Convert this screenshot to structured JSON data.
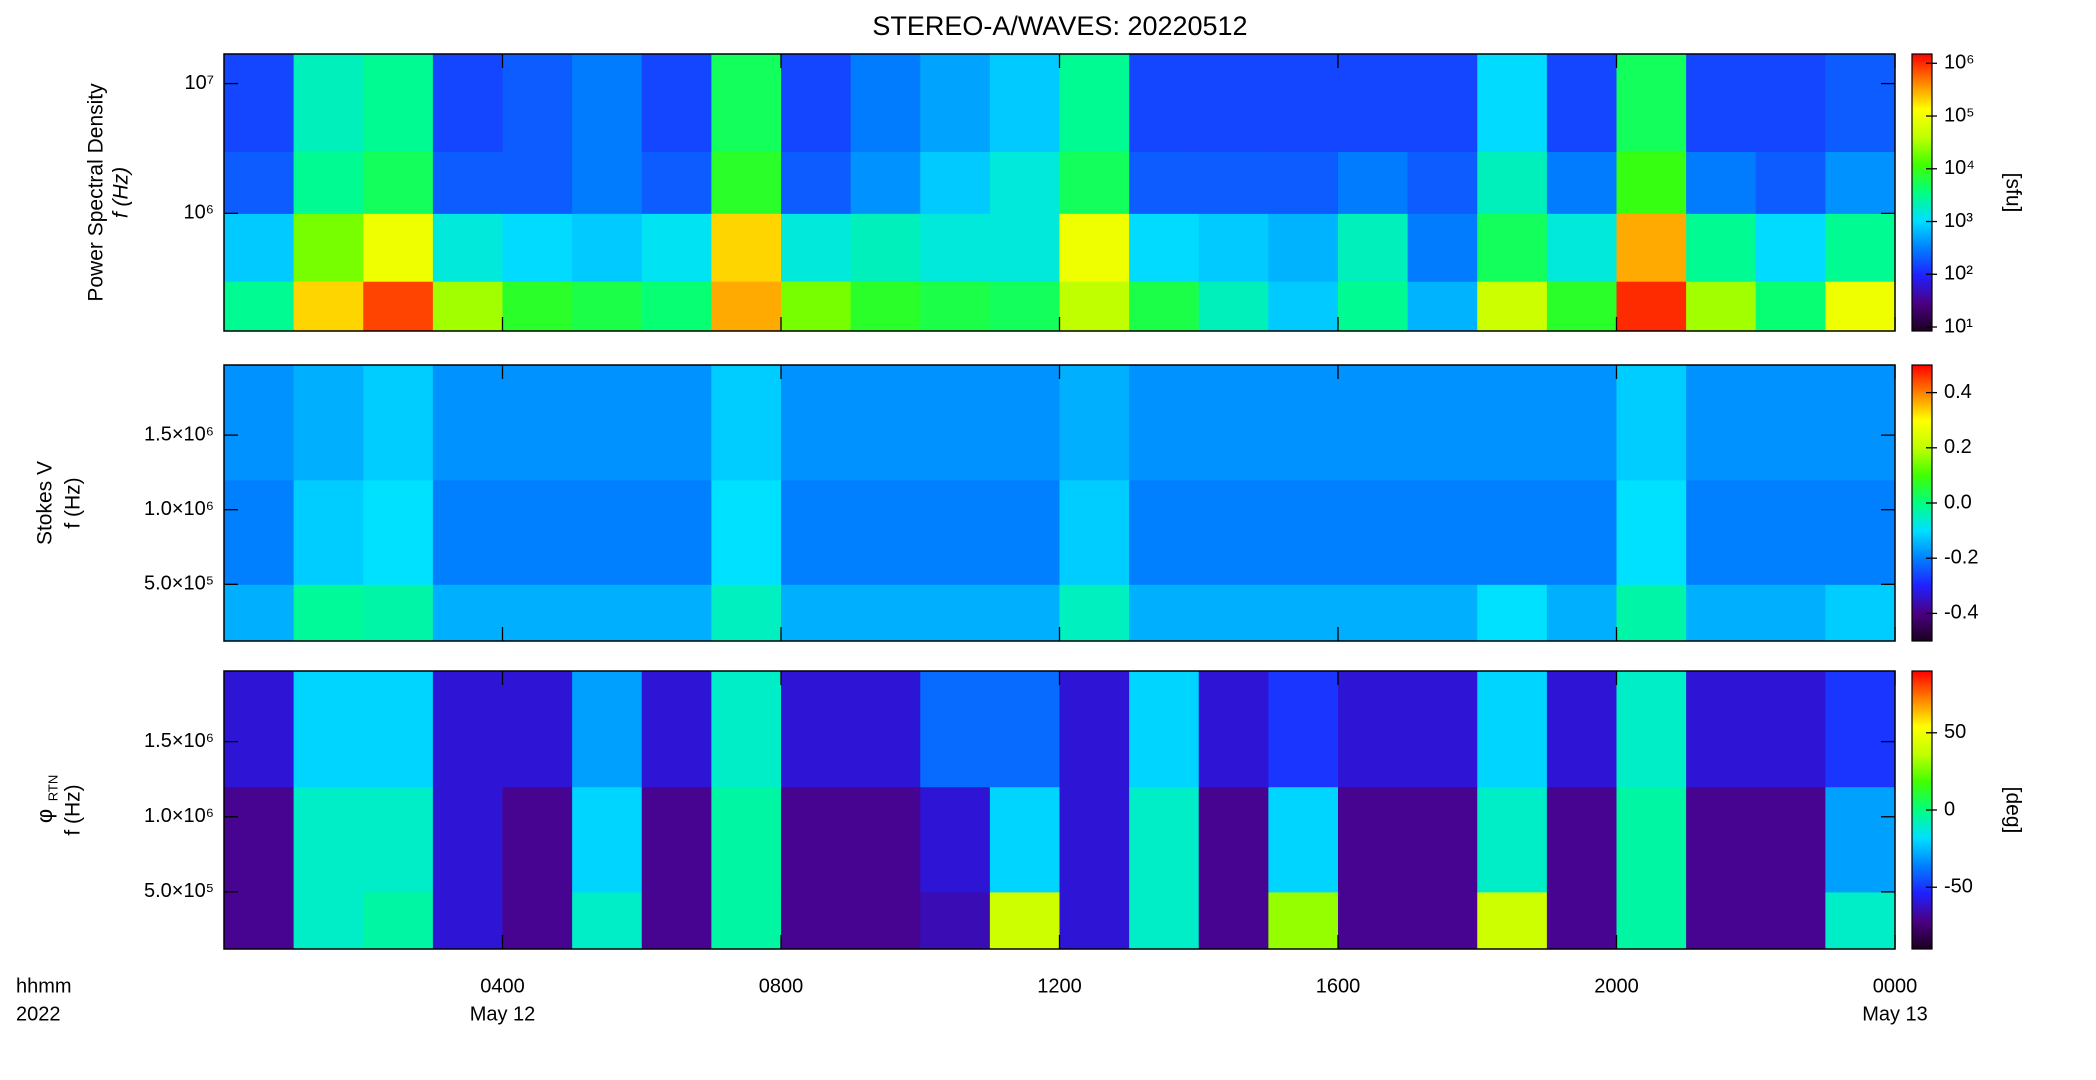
{
  "chart_data": [
    {
      "type": "heatmap",
      "title": "STEREO-A/WAVES: 20220512",
      "ylabel": "Power Spectral Density",
      "ylabel2": "f (Hz)",
      "clabel": "[sfu]",
      "xlim": [
        0,
        24
      ],
      "ylim": [
        124000,
        16900000
      ],
      "ylog": true,
      "yticks": [
        {
          "value": 1000000,
          "label": "10⁶"
        },
        {
          "value": 10000000,
          "label": "10⁷"
        }
      ],
      "clim": [
        8.4,
        1500000
      ],
      "clog": true,
      "cticks": [
        {
          "value": 10,
          "label": "10¹"
        },
        {
          "value": 100,
          "label": "10²"
        },
        {
          "value": 1000,
          "label": "10³"
        },
        {
          "value": 10000,
          "label": "10⁴"
        },
        {
          "value": 100000,
          "label": "10⁵"
        },
        {
          "value": 1000000,
          "label": "10⁶"
        }
      ],
      "colormap": [
        "#1a0020",
        "#4b0082",
        "#2020ff",
        "#0080ff",
        "#00e0ff",
        "#00ff80",
        "#40ff00",
        "#c0ff00",
        "#ffff00",
        "#ff8000",
        "#ff0000"
      ],
      "xbins": [
        0,
        1,
        2,
        3,
        4,
        5,
        6,
        7,
        8,
        9,
        10,
        11,
        12,
        13,
        14,
        15,
        16,
        17,
        18,
        19,
        20,
        21,
        22,
        23,
        24
      ],
      "ybins": [
        124000,
        300000,
        1000000,
        3000000,
        16900000
      ],
      "z": [
        [
          3000,
          200000,
          800000,
          30000,
          8000,
          6000,
          4000,
          300000,
          20000,
          8000,
          6000,
          5000,
          40000,
          6000,
          2000,
          800,
          3000,
          600,
          50000,
          8000,
          1000000,
          30000,
          4000,
          100000
        ],
        [
          800,
          20000,
          100000,
          1500,
          1000,
          800,
          1200,
          200000,
          1500,
          2000,
          1500,
          1500,
          100000,
          1000,
          800,
          600,
          2000,
          300,
          5000,
          1500,
          300000,
          3000,
          1000,
          3000
        ],
        [
          200,
          3000,
          5000,
          200,
          200,
          300,
          200,
          8000,
          200,
          400,
          800,
          1500,
          5000,
          200,
          200,
          200,
          300,
          200,
          2000,
          300,
          10000,
          300,
          200,
          400
        ],
        [
          150,
          2000,
          3000,
          150,
          200,
          300,
          150,
          5000,
          150,
          300,
          500,
          800,
          3000,
          150,
          150,
          150,
          150,
          150,
          1000,
          150,
          5000,
          150,
          150,
          200
        ]
      ]
    },
    {
      "type": "heatmap",
      "ylabel": "Stokes V",
      "ylabel2": "f (Hz)",
      "xlim": [
        0,
        24
      ],
      "ylim": [
        120000,
        1970000
      ],
      "ylog": false,
      "yticks": [
        {
          "value": 500000,
          "label": "5.0×10⁵"
        },
        {
          "value": 1000000,
          "label": "1.0×10⁶"
        },
        {
          "value": 1500000,
          "label": "1.5×10⁶"
        }
      ],
      "clim": [
        -0.5,
        0.5
      ],
      "clog": false,
      "cticks": [
        -0.4,
        -0.2,
        {
          "value": 0,
          "label": "0.0"
        },
        0.2,
        0.4
      ],
      "colormap": [
        "#1a0020",
        "#4b0082",
        "#2020ff",
        "#0080ff",
        "#00e0ff",
        "#00ff80",
        "#40ff00",
        "#c0ff00",
        "#ffff00",
        "#ff8000",
        "#ff0000"
      ],
      "xbins": [
        0,
        1,
        2,
        3,
        4,
        5,
        6,
        7,
        8,
        9,
        10,
        11,
        12,
        13,
        14,
        15,
        16,
        17,
        18,
        19,
        20,
        21,
        22,
        23,
        24
      ],
      "ybins": [
        120000,
        500000,
        1200000,
        1970000
      ],
      "z": [
        [
          -0.15,
          -0.02,
          -0.03,
          -0.15,
          -0.15,
          -0.15,
          -0.15,
          -0.05,
          -0.15,
          -0.15,
          -0.15,
          -0.15,
          -0.05,
          -0.15,
          -0.15,
          -0.15,
          -0.15,
          -0.15,
          -0.1,
          -0.15,
          -0.03,
          -0.15,
          -0.15,
          -0.12
        ],
        [
          -0.2,
          -0.12,
          -0.1,
          -0.2,
          -0.2,
          -0.2,
          -0.2,
          -0.1,
          -0.2,
          -0.2,
          -0.2,
          -0.2,
          -0.12,
          -0.2,
          -0.2,
          -0.2,
          -0.2,
          -0.2,
          -0.2,
          -0.2,
          -0.1,
          -0.2,
          -0.2,
          -0.2
        ],
        [
          -0.18,
          -0.15,
          -0.12,
          -0.18,
          -0.18,
          -0.18,
          -0.18,
          -0.12,
          -0.18,
          -0.18,
          -0.18,
          -0.18,
          -0.15,
          -0.18,
          -0.18,
          -0.18,
          -0.18,
          -0.18,
          -0.18,
          -0.18,
          -0.12,
          -0.18,
          -0.18,
          -0.18
        ]
      ]
    },
    {
      "type": "heatmap",
      "ylabel": "φ",
      "ylabel_sub": "RTN",
      "ylabel2": "f (Hz)",
      "clabel": "[deg]",
      "xlim": [
        0,
        24
      ],
      "ylim": [
        120000,
        1970000
      ],
      "ylog": false,
      "yticks": [
        {
          "value": 500000,
          "label": "5.0×10⁵"
        },
        {
          "value": 1000000,
          "label": "1.0×10⁶"
        },
        {
          "value": 1500000,
          "label": "1.5×10⁶"
        }
      ],
      "clim": [
        -90,
        90
      ],
      "clog": false,
      "cticks": [
        -50,
        0,
        50
      ],
      "colormap": [
        "#1a0020",
        "#4b0082",
        "#2020ff",
        "#0080ff",
        "#00e0ff",
        "#00ff80",
        "#40ff00",
        "#c0ff00",
        "#ffff00",
        "#ff8000",
        "#ff0000"
      ],
      "xbins": [
        0,
        1,
        2,
        3,
        4,
        5,
        6,
        7,
        8,
        9,
        10,
        11,
        12,
        13,
        14,
        15,
        16,
        17,
        18,
        19,
        20,
        21,
        22,
        23,
        24
      ],
      "ybins": [
        120000,
        500000,
        1200000,
        1970000
      ],
      "z": [
        [
          -70,
          -10,
          -5,
          -60,
          -70,
          -10,
          -70,
          -5,
          -70,
          -70,
          -65,
          40,
          -60,
          -10,
          -70,
          30,
          -70,
          -70,
          40,
          -70,
          -5,
          -70,
          -70,
          -10
        ],
        [
          -70,
          -10,
          -10,
          -60,
          -70,
          -20,
          -70,
          -5,
          -70,
          -70,
          -60,
          -20,
          -60,
          -10,
          -70,
          -20,
          -70,
          -70,
          -10,
          -70,
          -5,
          -70,
          -70,
          -30
        ],
        [
          -60,
          -20,
          -20,
          -60,
          -60,
          -30,
          -60,
          -10,
          -60,
          -60,
          -40,
          -40,
          -60,
          -20,
          -60,
          -50,
          -60,
          -60,
          -20,
          -60,
          -10,
          -60,
          -60,
          -50
        ]
      ],
      "xlabel": "hhmm",
      "xlabel2": "2022",
      "xticks": [
        {
          "value": 4,
          "label": "0400"
        },
        {
          "value": 8,
          "label": "0800"
        },
        {
          "value": 12,
          "label": "1200"
        },
        {
          "value": 16,
          "label": "1600"
        },
        {
          "value": 20,
          "label": "2000"
        },
        {
          "value": 24,
          "label": "0000"
        }
      ],
      "xdates": [
        {
          "value": 4,
          "label": "May 12"
        },
        {
          "value": 24,
          "label": "May 13"
        }
      ]
    }
  ]
}
